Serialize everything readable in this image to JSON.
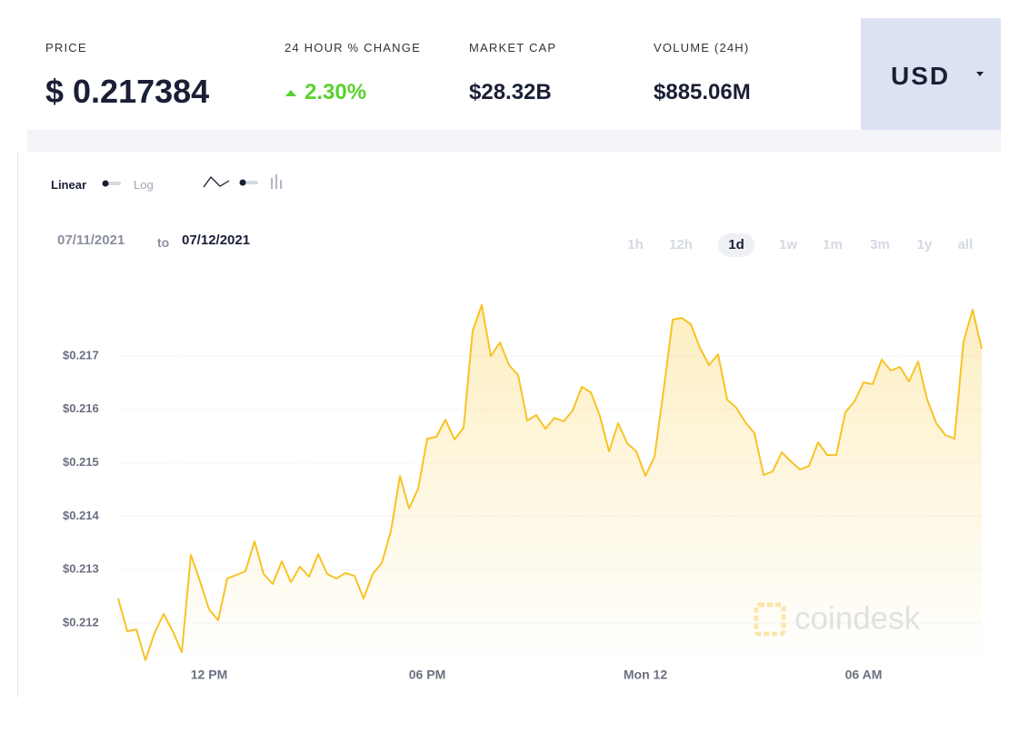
{
  "header": {
    "price_label": "PRICE",
    "price": "$ 0.217384",
    "change_label": "24 HOUR % CHANGE",
    "change": "2.30%",
    "market_cap_label": "MARKET CAP",
    "market_cap": "$28.32B",
    "volume_label": "VOLUME (24H)",
    "volume": "$885.06M",
    "currency": "USD"
  },
  "controls": {
    "linear": "Linear",
    "log": "Log",
    "date_from": "07/11/2021",
    "date_to_word": "to",
    "date_to": "07/12/2021",
    "ranges": [
      "1h",
      "12h",
      "1d",
      "1w",
      "1m",
      "3m",
      "1y",
      "all"
    ],
    "active_range": "1d"
  },
  "watermark": "coindesk",
  "chart_data": {
    "type": "line",
    "color": "#f7c325",
    "grid": true,
    "x": [
      9.5,
      9.75,
      10,
      10.25,
      10.5,
      10.75,
      11,
      11.25,
      11.5,
      11.75,
      12,
      12.25,
      12.5,
      12.75,
      13,
      13.25,
      13.5,
      13.75,
      14,
      14.25,
      14.5,
      14.75,
      15,
      15.25,
      15.5,
      15.75,
      16,
      16.25,
      16.5,
      16.75,
      17,
      17.25,
      17.5,
      17.75,
      18,
      18.25,
      18.5,
      18.75,
      19,
      19.25,
      19.5,
      19.75,
      20,
      20.25,
      20.5,
      20.75,
      21,
      21.25,
      21.5,
      21.75,
      22,
      22.25,
      22.5,
      22.75,
      23,
      23.25,
      23.5,
      23.75,
      24,
      24.25,
      24.5,
      24.75,
      25,
      25.25,
      25.5,
      25.75,
      26,
      26.25,
      26.5,
      26.75,
      27,
      27.25,
      27.5,
      27.75,
      28,
      28.25,
      28.5,
      28.75,
      29,
      29.25,
      29.5,
      29.75,
      30,
      30.25,
      30.5,
      30.75,
      31,
      31.25,
      31.5,
      31.75,
      32,
      32.25,
      32.5,
      32.75,
      33,
      33.25
    ],
    "values": [
      0.212459,
      0.211847,
      0.211881,
      0.211303,
      0.211813,
      0.21217,
      0.211847,
      0.211456,
      0.213275,
      0.212782,
      0.212255,
      0.212051,
      0.212833,
      0.212901,
      0.212969,
      0.213531,
      0.212918,
      0.212731,
      0.213156,
      0.212765,
      0.213054,
      0.212867,
      0.213292,
      0.212918,
      0.212833,
      0.212935,
      0.212884,
      0.212459,
      0.212918,
      0.213122,
      0.213718,
      0.214755,
      0.214143,
      0.214517,
      0.215452,
      0.215486,
      0.21581,
      0.215435,
      0.215656,
      0.217476,
      0.217952,
      0.217,
      0.217255,
      0.21683,
      0.216643,
      0.215793,
      0.215894,
      0.215639,
      0.215844,
      0.215776,
      0.21598,
      0.216422,
      0.21632,
      0.215878,
      0.215214,
      0.215741,
      0.215367,
      0.215214,
      0.214755,
      0.215112,
      0.216354,
      0.21768,
      0.217714,
      0.217595,
      0.217153,
      0.21683,
      0.217034,
      0.216184,
      0.216031,
      0.215758,
      0.215554,
      0.214772,
      0.21484,
      0.215197,
      0.215027,
      0.214874,
      0.214942,
      0.215384,
      0.215146,
      0.215146,
      0.215946,
      0.21615,
      0.216507,
      0.216473,
      0.216932,
      0.216728,
      0.216796,
      0.216524,
      0.216898,
      0.216184,
      0.215741,
      0.21552,
      0.215452,
      0.217272,
      0.217867,
      0.217136
    ],
    "xlim": [
      9.5,
      33.25
    ],
    "ylim": [
      0.2112,
      0.2181
    ],
    "xticks": [
      {
        "value": 12,
        "label": "12 PM"
      },
      {
        "value": 18,
        "label": "06 PM"
      },
      {
        "value": 24,
        "label": "Mon 12"
      },
      {
        "value": 30,
        "label": "06 AM"
      }
    ],
    "yticks": [
      {
        "value": 0.212,
        "label": "$0.212"
      },
      {
        "value": 0.213,
        "label": "$0.213"
      },
      {
        "value": 0.214,
        "label": "$0.214"
      },
      {
        "value": 0.215,
        "label": "$0.215"
      },
      {
        "value": 0.216,
        "label": "$0.216"
      },
      {
        "value": 0.217,
        "label": "$0.217"
      }
    ]
  }
}
